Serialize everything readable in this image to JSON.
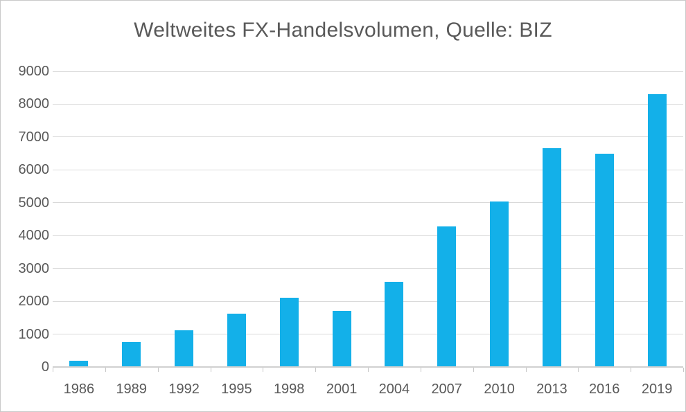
{
  "window": {
    "background_color": "#ffffff",
    "border_color": "#c9c9c9"
  },
  "chart_data": {
    "type": "bar",
    "title": "Weltweites FX-Handelsvolumen, Quelle: BIZ",
    "categories": [
      "1986",
      "1989",
      "1992",
      "1995",
      "1998",
      "2001",
      "2004",
      "2007",
      "2010",
      "2013",
      "2016",
      "2019"
    ],
    "values": [
      200,
      750,
      1120,
      1630,
      2100,
      1700,
      2600,
      4280,
      5040,
      6670,
      6500,
      8300
    ],
    "series_name": "FX-Handelsvolumen",
    "xlabel": "",
    "ylabel": "",
    "ylim": [
      0,
      9000
    ],
    "ytick_step": 1000,
    "yticks": [
      "0",
      "1000",
      "2000",
      "3000",
      "4000",
      "5000",
      "6000",
      "7000",
      "8000",
      "9000"
    ],
    "grid": true,
    "legend_position": "none",
    "colors": {
      "bar": "#13b0e9",
      "text": "#595959",
      "gridline": "#d9d9d9",
      "axis_line": "#d0d0d0"
    }
  }
}
